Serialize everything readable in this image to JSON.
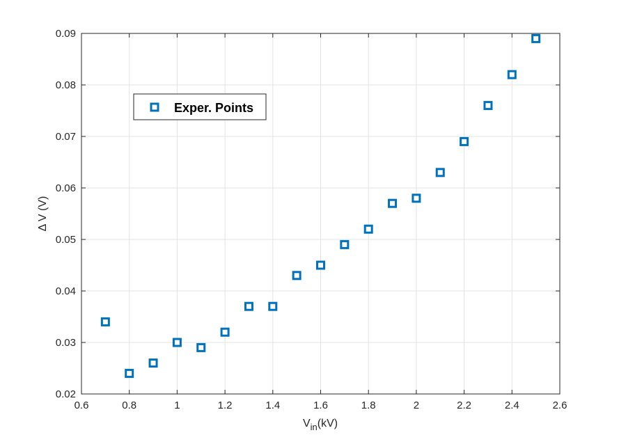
{
  "chart_data": {
    "type": "scatter",
    "xlabel_main": "V",
    "xlabel_sub": "in",
    "xlabel_unit": "(kV)",
    "ylabel": "Δ V (V)",
    "xlim": [
      0.6,
      2.6
    ],
    "ylim": [
      0.02,
      0.09
    ],
    "x_ticks": [
      "0.6",
      "0.8",
      "1",
      "1.2",
      "1.4",
      "1.6",
      "1.8",
      "2",
      "2.2",
      "2.4",
      "2.6"
    ],
    "y_ticks": [
      "0.02",
      "0.03",
      "0.04",
      "0.05",
      "0.06",
      "0.07",
      "0.08",
      "0.09"
    ],
    "grid": true,
    "legend_position": "upper-left",
    "series": [
      {
        "name": "Exper. Points",
        "color": "#0072BD",
        "marker": "square",
        "x": [
          0.7,
          0.8,
          0.9,
          1.0,
          1.1,
          1.2,
          1.3,
          1.4,
          1.5,
          1.6,
          1.7,
          1.8,
          1.9,
          2.0,
          2.1,
          2.2,
          2.3,
          2.4,
          2.5
        ],
        "y": [
          0.034,
          0.024,
          0.026,
          0.03,
          0.029,
          0.032,
          0.037,
          0.037,
          0.043,
          0.045,
          0.049,
          0.052,
          0.057,
          0.058,
          0.063,
          0.069,
          0.076,
          0.082,
          0.089
        ]
      }
    ]
  }
}
